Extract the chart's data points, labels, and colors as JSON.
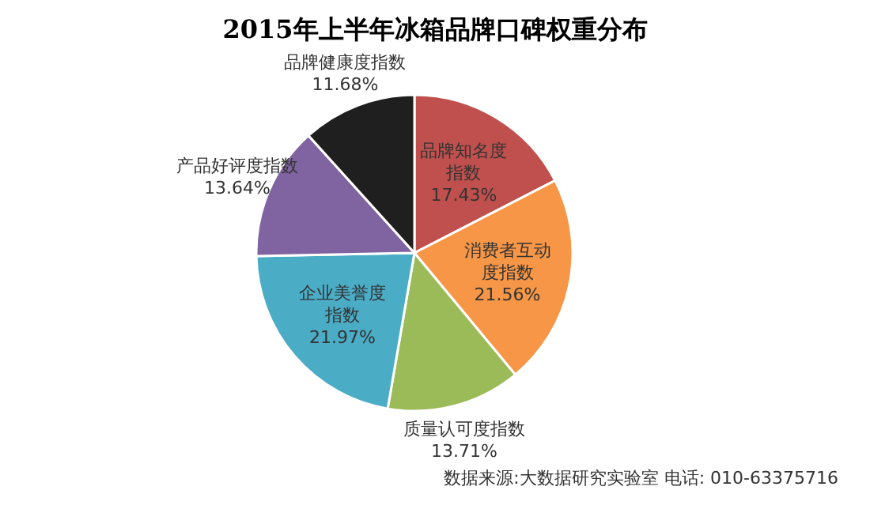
{
  "chart_data": {
    "type": "pie",
    "title": "2015年上半年冰箱品牌口碑权重分布",
    "categories": [
      "品牌知名度指数",
      "消费者互动度指数",
      "质量认可度指数",
      "企业美誉度指数",
      "产品好评度指数",
      "品牌健康度指数"
    ],
    "values": [
      17.43,
      21.56,
      13.71,
      21.97,
      13.64,
      11.68
    ],
    "colors": [
      "#c0504d",
      "#f79646",
      "#9bbb59",
      "#4bacc6",
      "#8064a2",
      "#1f1f1f"
    ],
    "value_labels": [
      "17.43%",
      "21.56%",
      "13.71%",
      "21.97%",
      "13.64%",
      "11.68%"
    ],
    "annotations": [
      "数据来源:大数据研究实验室  电话: 010-63375716"
    ]
  }
}
